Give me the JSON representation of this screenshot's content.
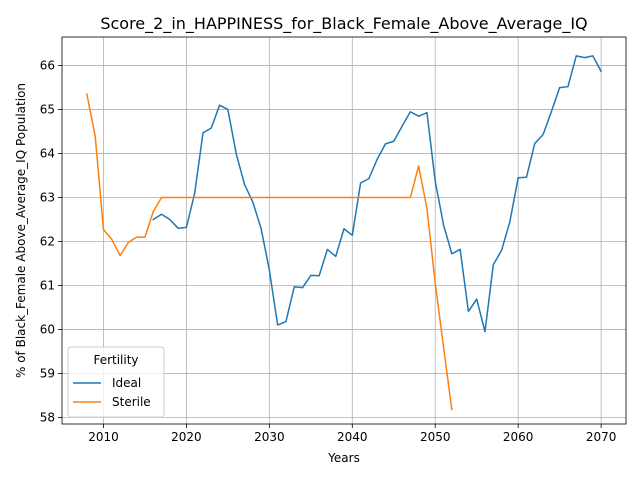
{
  "chart_data": {
    "type": "line",
    "title": "Score_2_in_HAPPINESS_for_Black_Female_Above_Average_IQ",
    "xlabel": "Years",
    "ylabel": "% of Black_Female Above_Average_IQ Population",
    "xlim": [
      2005,
      2073
    ],
    "ylim": [
      57.85,
      66.65
    ],
    "xticks": [
      2010,
      2020,
      2030,
      2040,
      2050,
      2060,
      2070
    ],
    "yticks": [
      58,
      59,
      60,
      61,
      62,
      63,
      64,
      65,
      66
    ],
    "grid": true,
    "legend": {
      "title": "Fertility",
      "placement": "lower-left"
    },
    "series": [
      {
        "name": "Ideal",
        "color": "#1f77b4",
        "x": [
          2016,
          2017,
          2018,
          2019,
          2020,
          2021,
          2022,
          2023,
          2024,
          2025,
          2026,
          2027,
          2028,
          2029,
          2030,
          2031,
          2032,
          2033,
          2034,
          2035,
          2036,
          2037,
          2038,
          2039,
          2040,
          2041,
          2042,
          2043,
          2044,
          2045,
          2046,
          2047,
          2048,
          2049,
          2050,
          2051,
          2052,
          2053,
          2054,
          2055,
          2056,
          2057,
          2058,
          2059,
          2060,
          2061,
          2062,
          2063,
          2064,
          2065,
          2066,
          2067,
          2068,
          2069,
          2070
        ],
        "y": [
          62.5,
          62.62,
          62.5,
          62.3,
          62.32,
          63.1,
          64.47,
          64.58,
          65.1,
          65.0,
          64.0,
          63.3,
          62.9,
          62.3,
          61.35,
          60.1,
          60.18,
          60.97,
          60.95,
          61.23,
          61.22,
          61.82,
          61.66,
          62.29,
          62.14,
          63.33,
          63.43,
          63.87,
          64.22,
          64.28,
          64.62,
          64.95,
          64.85,
          64.93,
          63.37,
          62.38,
          61.72,
          61.82,
          60.41,
          60.69,
          59.95,
          61.47,
          61.8,
          62.45,
          63.45,
          63.46,
          64.23,
          64.43,
          64.95,
          65.5,
          65.52,
          66.22,
          66.18,
          66.22,
          65.87
        ]
      },
      {
        "name": "Sterile",
        "color": "#ff7f0e",
        "x": [
          2008,
          2009,
          2010,
          2011,
          2012,
          2013,
          2014,
          2015,
          2016,
          2017,
          2018,
          2019,
          2020,
          2021,
          2022,
          2023,
          2024,
          2025,
          2026,
          2027,
          2028,
          2029,
          2030,
          2031,
          2032,
          2033,
          2034,
          2035,
          2036,
          2037,
          2038,
          2039,
          2040,
          2041,
          2042,
          2043,
          2044,
          2045,
          2046,
          2047,
          2048,
          2049,
          2050,
          2051,
          2052
        ],
        "y": [
          65.35,
          64.4,
          62.27,
          62.05,
          61.68,
          61.98,
          62.1,
          62.1,
          62.68,
          63.0,
          63.0,
          63.0,
          63.0,
          63.0,
          63.0,
          63.0,
          63.0,
          63.0,
          63.0,
          63.0,
          63.0,
          63.0,
          63.0,
          63.0,
          63.0,
          63.0,
          63.0,
          63.0,
          63.0,
          63.0,
          63.0,
          63.0,
          63.0,
          63.0,
          63.0,
          63.0,
          63.0,
          63.0,
          63.0,
          63.0,
          63.72,
          62.75,
          61.05,
          59.6,
          58.18
        ]
      }
    ]
  }
}
